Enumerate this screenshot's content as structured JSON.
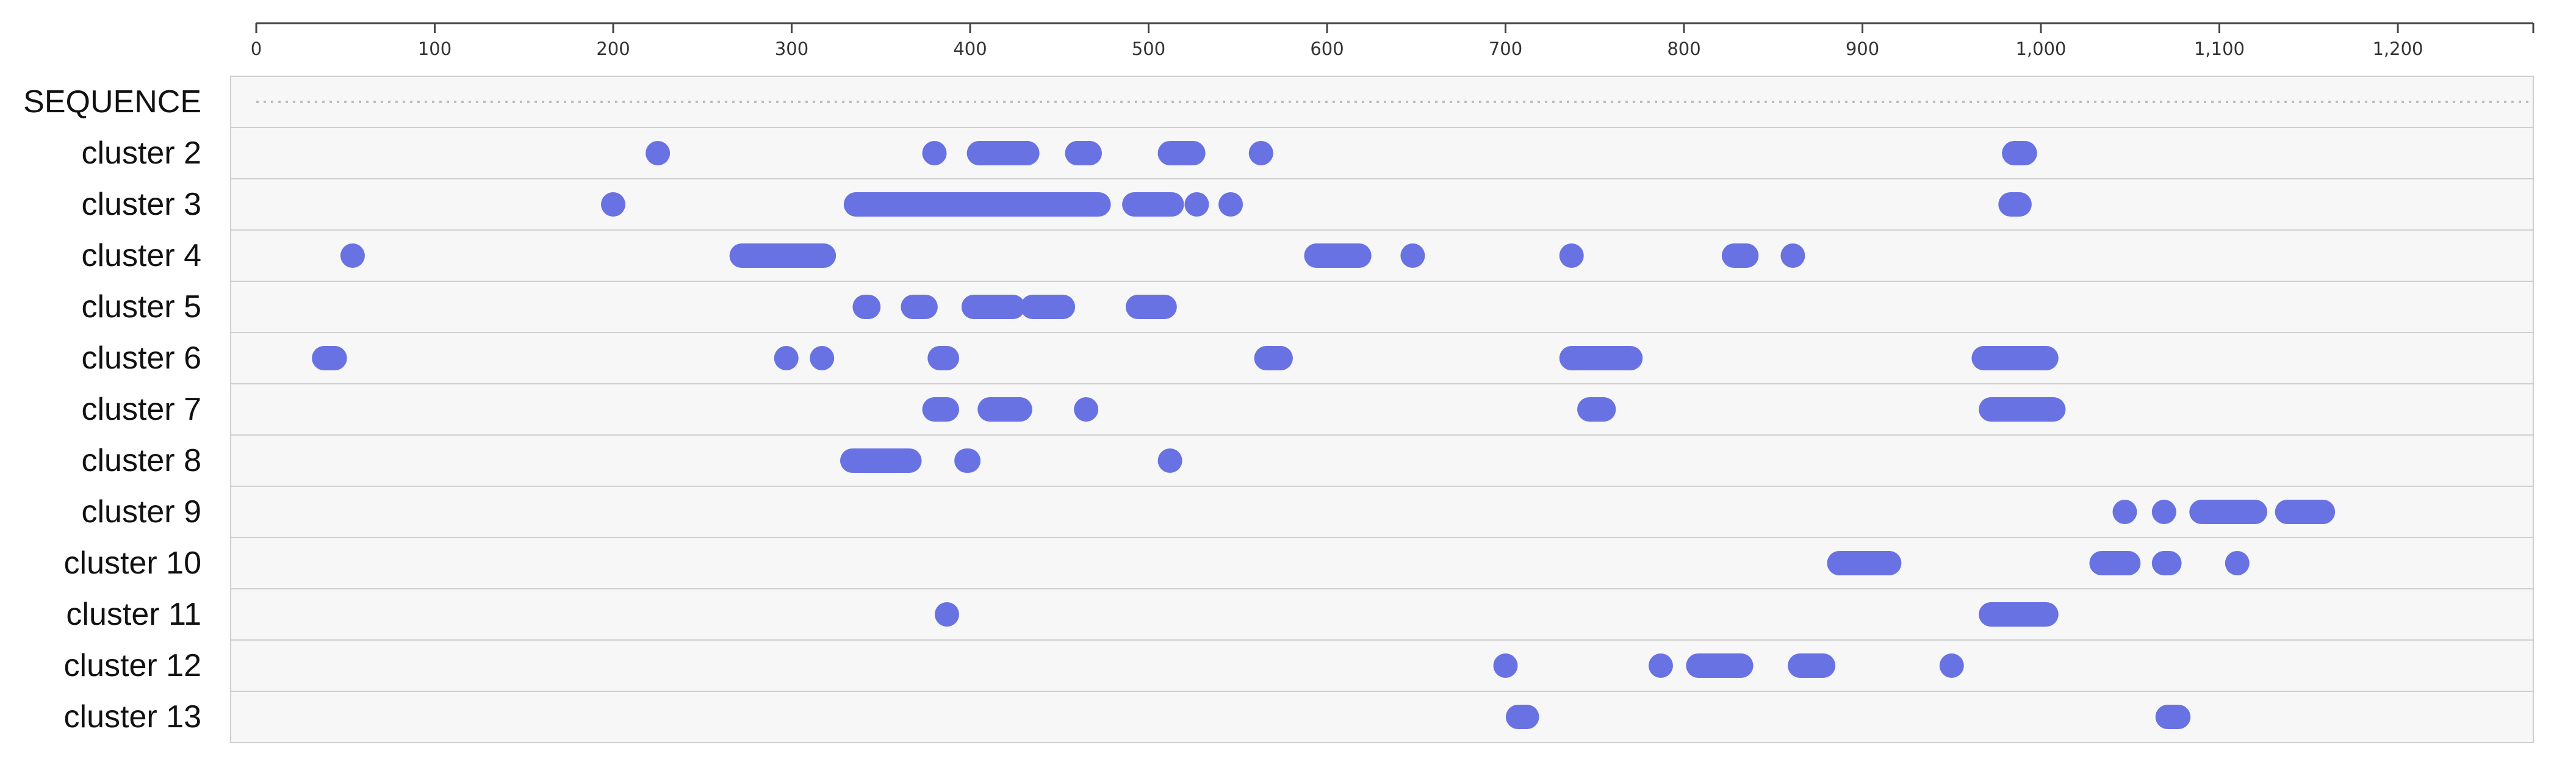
{
  "chart_data": {
    "type": "scatter",
    "title": "",
    "xlabel": "",
    "ylabel": "",
    "xlim": [
      0,
      1275
    ],
    "x_ticks": [
      0,
      100,
      200,
      300,
      400,
      500,
      600,
      700,
      800,
      900,
      1000,
      1100,
      1200
    ],
    "x_tick_labels": [
      "0",
      "100",
      "200",
      "300",
      "400",
      "500",
      "600",
      "700",
      "800",
      "900",
      "1,000",
      "1,100",
      "1,200"
    ],
    "sequence_label": "SEQUENCE",
    "marker_color": "#6872e3",
    "track_background": "#f7f7f7",
    "grid": false,
    "series": [
      {
        "name": "cluster 2",
        "segments": [
          [
            225,
            225
          ],
          [
            380,
            380
          ],
          [
            405,
            432
          ],
          [
            460,
            467
          ],
          [
            512,
            525
          ],
          [
            563,
            563
          ],
          [
            985,
            991
          ]
        ]
      },
      {
        "name": "cluster 3",
        "segments": [
          [
            200,
            200
          ],
          [
            336,
            472
          ],
          [
            492,
            513
          ],
          [
            527,
            527
          ],
          [
            546,
            546
          ],
          [
            983,
            988
          ]
        ]
      },
      {
        "name": "cluster 4",
        "segments": [
          [
            54,
            54
          ],
          [
            272,
            318
          ],
          [
            594,
            618
          ],
          [
            648,
            648
          ],
          [
            737,
            737
          ],
          [
            828,
            835
          ],
          [
            861,
            861
          ]
        ]
      },
      {
        "name": "cluster 5",
        "segments": [
          [
            341,
            343
          ],
          [
            368,
            375
          ],
          [
            402,
            424
          ],
          [
            435,
            452
          ],
          [
            494,
            509
          ]
        ]
      },
      {
        "name": "cluster 6",
        "segments": [
          [
            38,
            44
          ],
          [
            297,
            297
          ],
          [
            317,
            317
          ],
          [
            383,
            387
          ],
          [
            566,
            574
          ],
          [
            737,
            770
          ],
          [
            968,
            1003
          ]
        ]
      },
      {
        "name": "cluster 7",
        "segments": [
          [
            380,
            387
          ],
          [
            411,
            428
          ],
          [
            465,
            465
          ],
          [
            747,
            755
          ],
          [
            972,
            1007
          ]
        ]
      },
      {
        "name": "cluster 8",
        "segments": [
          [
            334,
            366
          ],
          [
            398,
            399
          ],
          [
            512,
            512
          ]
        ]
      },
      {
        "name": "cluster 9",
        "segments": [
          [
            1047,
            1047
          ],
          [
            1069,
            1069
          ],
          [
            1090,
            1120
          ],
          [
            1138,
            1158
          ]
        ]
      },
      {
        "name": "cluster 10",
        "segments": [
          [
            887,
            915
          ],
          [
            1034,
            1049
          ],
          [
            1069,
            1072
          ],
          [
            1110,
            1110
          ]
        ]
      },
      {
        "name": "cluster 11",
        "segments": [
          [
            387,
            387
          ],
          [
            972,
            1003
          ]
        ]
      },
      {
        "name": "cluster 12",
        "segments": [
          [
            700,
            700
          ],
          [
            787,
            787
          ],
          [
            808,
            832
          ],
          [
            865,
            878
          ],
          [
            950,
            950
          ]
        ]
      },
      {
        "name": "cluster 13",
        "segments": [
          [
            707,
            712
          ],
          [
            1071,
            1077
          ]
        ]
      }
    ]
  }
}
